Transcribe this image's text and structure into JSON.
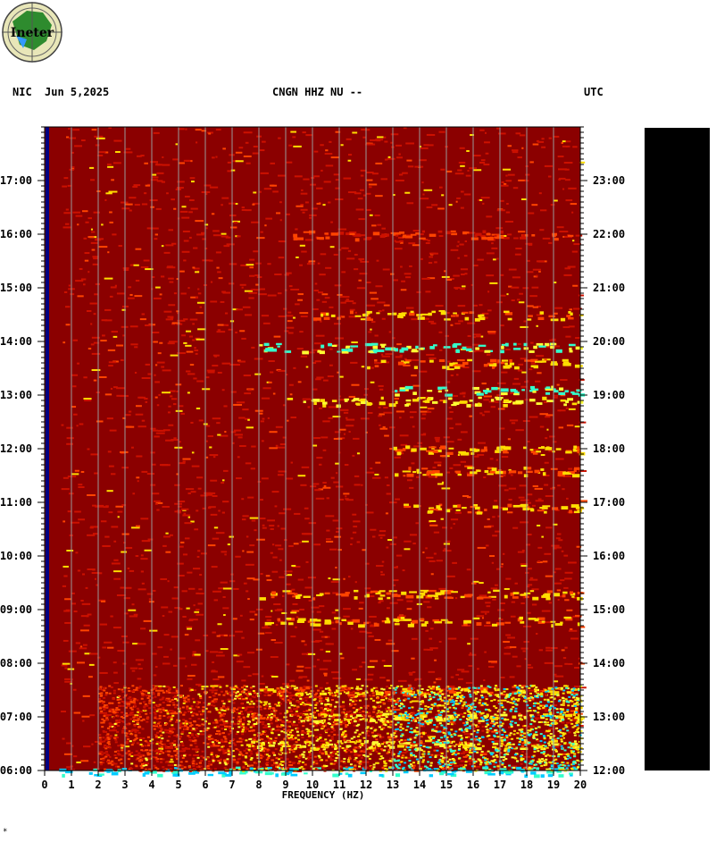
{
  "header": {
    "network": "NIC",
    "date": "Jun 5,2025",
    "station": "CNGN HHZ NU --",
    "timezone": "UTC"
  },
  "logo": {
    "text": "Ineter",
    "icon": "ineter-logo-icon"
  },
  "footnote": "*",
  "colors": {
    "background_level": "#8b0000",
    "low_band": "#000080",
    "levels": [
      "#8b0000",
      "#cc1100",
      "#ff4400",
      "#ffdd00",
      "#ffff33",
      "#33ffcc",
      "#00ccff"
    ]
  },
  "chart_data": {
    "type": "heatmap",
    "title": "CNGN HHZ NU --",
    "xlabel": "FREQUENCY (HZ)",
    "xlim": [
      0,
      20
    ],
    "xticks": [
      "0",
      "1",
      "2",
      "3",
      "4",
      "5",
      "6",
      "7",
      "8",
      "9",
      "10",
      "11",
      "12",
      "13",
      "14",
      "15",
      "16",
      "17",
      "18",
      "19",
      "20"
    ],
    "y_left_ticks": [
      "06:00",
      "07:00",
      "08:00",
      "09:00",
      "10:00",
      "11:00",
      "12:00",
      "13:00",
      "14:00",
      "15:00",
      "16:00",
      "17:00"
    ],
    "y_right_ticks": [
      "12:00",
      "13:00",
      "14:00",
      "15:00",
      "16:00",
      "17:00",
      "18:00",
      "19:00",
      "20:00",
      "21:00",
      "22:00",
      "23:00"
    ],
    "time_range_hours": [
      6,
      18
    ],
    "grid_x": true,
    "description_levels": "low energy dark red, higher energy yellow/cyan",
    "energy_bands": [
      {
        "hour": 6.0,
        "fmin": 0.5,
        "fmax": 20,
        "level": 6
      },
      {
        "hour": 6.5,
        "fmin": 7,
        "fmax": 20,
        "level": 4
      },
      {
        "hour": 7.0,
        "fmin": 9,
        "fmax": 20,
        "level": 4
      },
      {
        "hour": 7.5,
        "fmin": 8,
        "fmax": 20,
        "level": 3
      },
      {
        "hour": 8.8,
        "fmin": 8,
        "fmax": 20,
        "level": 3
      },
      {
        "hour": 9.3,
        "fmin": 8,
        "fmax": 20,
        "level": 3
      },
      {
        "hour": 10.9,
        "fmin": 13,
        "fmax": 20,
        "level": 3
      },
      {
        "hour": 11.6,
        "fmin": 13,
        "fmax": 20,
        "level": 3
      },
      {
        "hour": 12.0,
        "fmin": 13,
        "fmax": 20,
        "level": 3
      },
      {
        "hour": 12.9,
        "fmin": 9,
        "fmax": 20,
        "level": 4
      },
      {
        "hour": 13.1,
        "fmin": 13,
        "fmax": 20,
        "level": 5
      },
      {
        "hour": 13.6,
        "fmin": 12,
        "fmax": 20,
        "level": 3
      },
      {
        "hour": 13.9,
        "fmin": 8,
        "fmax": 20,
        "level": 5
      },
      {
        "hour": 14.5,
        "fmin": 10,
        "fmax": 20,
        "level": 3
      },
      {
        "hour": 16.0,
        "fmin": 9,
        "fmax": 20,
        "level": 2
      }
    ]
  }
}
